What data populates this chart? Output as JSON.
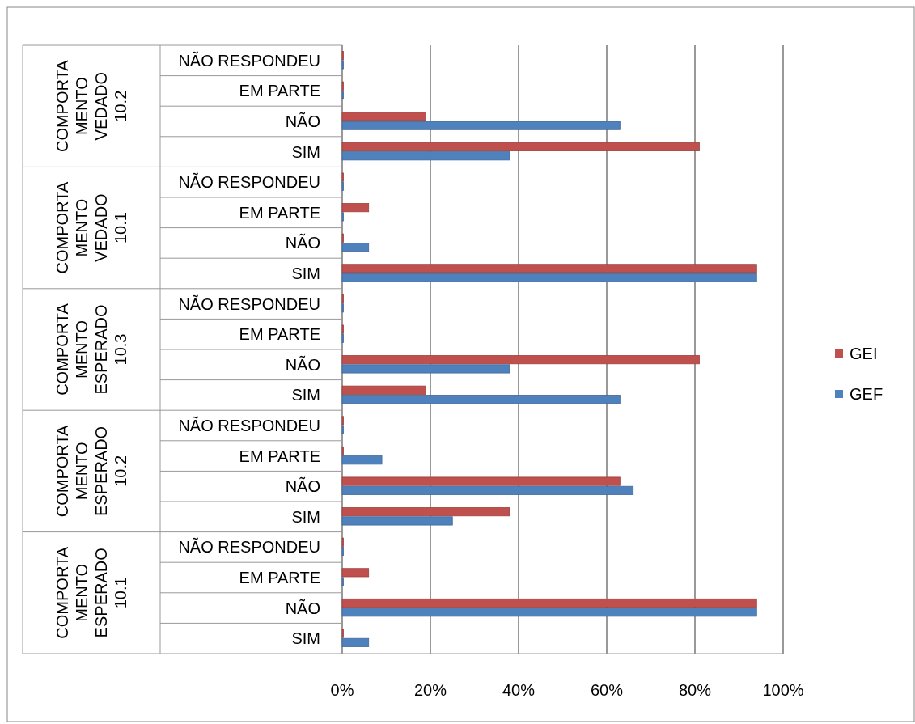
{
  "chart_data": {
    "type": "bar",
    "orientation": "horizontal",
    "categories": [
      "NÃO RESPONDEU",
      "EM PARTE",
      "NÃO",
      "SIM",
      "NÃO RESPONDEU",
      "EM PARTE",
      "NÃO",
      "SIM",
      "NÃO RESPONDEU",
      "EM PARTE",
      "NÃO",
      "SIM",
      "NÃO RESPONDEU",
      "EM PARTE",
      "NÃO",
      "SIM",
      "NÃO RESPONDEU",
      "EM PARTE",
      "NÃO",
      "SIM"
    ],
    "series": [
      {
        "name": "GEI",
        "color": "#c0504d",
        "values": [
          0,
          0,
          19,
          81,
          0,
          6,
          0,
          94,
          0,
          0,
          81,
          19,
          0,
          0,
          63,
          38,
          0,
          6,
          94,
          0
        ]
      },
      {
        "name": "GEF",
        "color": "#4f81bd",
        "values": [
          0,
          0,
          63,
          38,
          0,
          0,
          6,
          94,
          0,
          0,
          38,
          63,
          0,
          9,
          66,
          25,
          0,
          0,
          94,
          6
        ]
      }
    ],
    "xlim": [
      0,
      100
    ],
    "xticks": [
      {
        "value": 0,
        "label": "0%"
      },
      {
        "value": 20,
        "label": "20%"
      },
      {
        "value": 40,
        "label": "40%"
      },
      {
        "value": 60,
        "label": "60%"
      },
      {
        "value": 80,
        "label": "80%"
      },
      {
        "value": 100,
        "label": "100%"
      }
    ],
    "grid": "x",
    "legend": "right",
    "annotations": [
      "COMPORTA MENTO VEDADO 10.2",
      "COMPORTA MENTO VEDADO 10.1",
      "COMPORTA MENTO ESPERADO 10.3",
      "COMPORTA MENTO ESPERADO 10.2",
      "COMPORTA MENTO ESPERADO 10.1"
    ]
  }
}
